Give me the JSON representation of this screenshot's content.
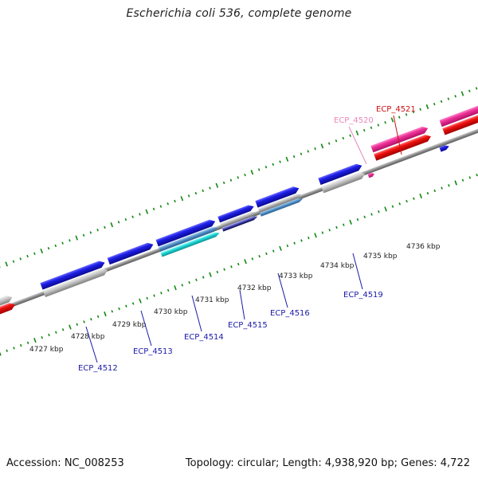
{
  "title": "Escherichia coli 536, complete genome",
  "footer": {
    "accession": "Accession: NC_008253",
    "summary": "Topology: circular; Length: 4,938,920 bp; Genes: 4,722"
  },
  "colors": {
    "cds_forward": "#1e1ee6",
    "cds_grey": "#c4c4c4",
    "cds_red": "#ee1010",
    "cds_pink": "#ee3399",
    "cds_cyan": "#22d8d8",
    "tick_green": "#118811",
    "label_blue": "#1a1aa8",
    "label_red": "#cc1111",
    "label_pink": "#e888bb",
    "backbone": "#8a8a8a"
  },
  "scale_labels": [
    "4727 kbp",
    "4728 kbp",
    "4729 kbp",
    "4730 kbp",
    "4731 kbp",
    "4732 kbp",
    "4733 kbp",
    "4734 kbp",
    "4735 kbp",
    "4736 kbp"
  ],
  "gene_labels": [
    {
      "text": "ECP_4512",
      "color": "blue"
    },
    {
      "text": "ECP_4513",
      "color": "blue"
    },
    {
      "text": "ECP_4514",
      "color": "blue"
    },
    {
      "text": "ECP_4515",
      "color": "blue"
    },
    {
      "text": "ECP_4516",
      "color": "blue"
    },
    {
      "text": "ECP_4519",
      "color": "blue"
    },
    {
      "text": "ECP_4520",
      "color": "pink"
    },
    {
      "text": "ECP_4521",
      "color": "red"
    }
  ]
}
